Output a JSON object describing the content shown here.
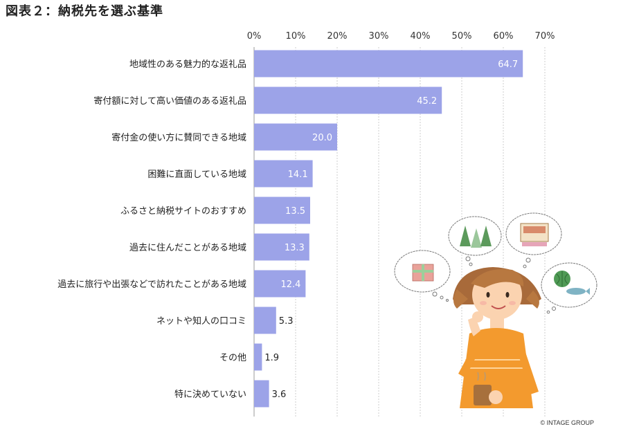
{
  "title": "図表２：納税先を選ぶ基準",
  "copyright": "© INTAGE GROUP",
  "colors": {
    "bar": "#9ca3e8",
    "value_inside": "#ffffff",
    "value_outside": "#222222",
    "axis": "#999999"
  },
  "chart_data": {
    "type": "bar",
    "orientation": "horizontal",
    "title": "図表２：納税先を選ぶ基準",
    "xlabel": "",
    "ylabel": "",
    "xlim": [
      0,
      70
    ],
    "x_ticks": [
      "0%",
      "10%",
      "20%",
      "30%",
      "40%",
      "50%",
      "60%",
      "70%"
    ],
    "tick_values": [
      0,
      10,
      20,
      30,
      40,
      50,
      60,
      70
    ],
    "grid": true,
    "categories": [
      "地域性のある魅力的な返礼品",
      "寄付額に対して高い価値のある返礼品",
      "寄付金の使い方に賛同できる地域",
      "困難に直面している地域",
      "ふるさと納税サイトのおすすめ",
      "過去に住んだことがある地域",
      "過去に旅行や出張などで訪れたことがある地域",
      "ネットや知人の口コミ",
      "その他",
      "特に決めていない"
    ],
    "values": [
      64.7,
      45.2,
      20.0,
      14.1,
      13.5,
      13.3,
      12.4,
      5.3,
      1.9,
      3.6
    ],
    "value_labels": [
      "64.7",
      "45.2",
      "20.0",
      "14.1",
      "13.5",
      "13.3",
      "12.4",
      "5.3",
      "1.9",
      "3.6"
    ]
  }
}
